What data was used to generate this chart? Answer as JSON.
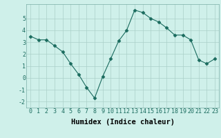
{
  "xlabel": "Humidex (Indice chaleur)",
  "x": [
    0,
    1,
    2,
    3,
    4,
    5,
    6,
    7,
    8,
    9,
    10,
    11,
    12,
    13,
    14,
    15,
    16,
    17,
    18,
    19,
    20,
    21,
    22,
    23
  ],
  "y": [
    3.5,
    3.2,
    3.2,
    2.7,
    2.2,
    1.2,
    0.3,
    -0.8,
    -1.7,
    0.1,
    1.6,
    3.1,
    4.0,
    5.7,
    5.5,
    5.0,
    4.7,
    4.2,
    3.6,
    3.6,
    3.2,
    1.5,
    1.2,
    1.6
  ],
  "line_color": "#1a6b5e",
  "marker": "D",
  "marker_size": 2.5,
  "bg_color": "#cff0ea",
  "grid_color": "#aacfc8",
  "tick_label_fontsize": 6,
  "xlabel_fontsize": 7.5,
  "ylim": [
    -2.5,
    6.2
  ],
  "xlim": [
    -0.5,
    23.5
  ],
  "yticks": [
    -2,
    -1,
    0,
    1,
    2,
    3,
    4,
    5
  ],
  "xtick_labels": [
    "0",
    "1",
    "2",
    "3",
    "4",
    "5",
    "6",
    "7",
    "8",
    "9",
    "10",
    "11",
    "12",
    "13",
    "14",
    "15",
    "16",
    "17",
    "18",
    "19",
    "20",
    "21",
    "22",
    "23"
  ]
}
